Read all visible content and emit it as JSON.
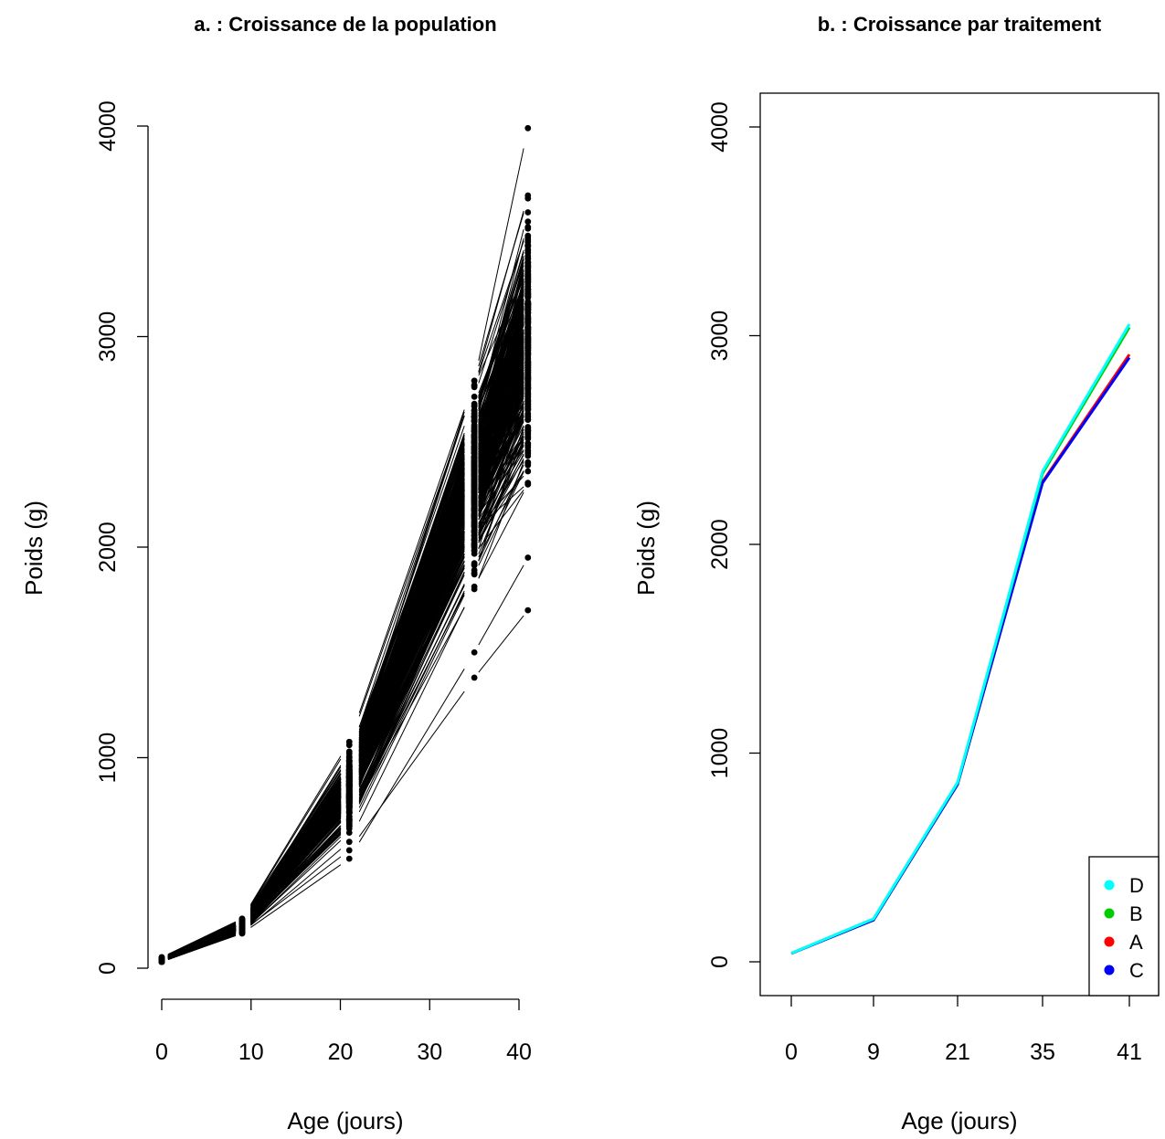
{
  "chart_data": [
    {
      "type": "line",
      "title": "a. : Croissance de la population",
      "xlabel": "Age (jours)",
      "ylabel": "Poids (g)",
      "xlim": [
        0,
        41
      ],
      "ylim": [
        0,
        4000
      ],
      "x_ticks": [
        "0",
        "10",
        "20",
        "30",
        "40"
      ],
      "y_ticks": [
        "0",
        "1000",
        "2000",
        "3000",
        "4000"
      ],
      "x": [
        0,
        9,
        21,
        35,
        41
      ],
      "description_of_series": "spaghetti plot of individual growth curves",
      "point_ranges": [
        {
          "x": 0,
          "min": 30,
          "max": 55
        },
        {
          "x": 9,
          "min": 150,
          "max": 240
        },
        {
          "x": 21,
          "min": 510,
          "max": 1080
        },
        {
          "x": 35,
          "min": 1380,
          "max": 2790
        },
        {
          "x": 41,
          "min": 1700,
          "max": 3990
        }
      ],
      "mean_curve": [
        40,
        200,
        850,
        2320,
        2970
      ],
      "grid": false
    },
    {
      "type": "line",
      "title": "b. : Croissance par traitement",
      "xlabel": "Age (jours)",
      "ylabel": "Poids (g)",
      "categories": [
        "0",
        "9",
        "21",
        "35",
        "41"
      ],
      "y_ticks": [
        "0",
        "1000",
        "2000",
        "3000",
        "4000"
      ],
      "ylim": [
        -150,
        4150
      ],
      "series": [
        {
          "name": "A",
          "color": "#ff0000",
          "values": [
            40,
            205,
            855,
            2300,
            2910
          ]
        },
        {
          "name": "C",
          "color": "#0000ff",
          "values": [
            40,
            200,
            850,
            2295,
            2895
          ]
        },
        {
          "name": "B",
          "color": "#00cd00",
          "values": [
            41,
            205,
            858,
            2340,
            3040
          ]
        },
        {
          "name": "D",
          "color": "#00ffff",
          "values": [
            41,
            206,
            860,
            2350,
            3055
          ]
        }
      ],
      "legend": {
        "position": "bottom-right",
        "entries": [
          {
            "label": "D",
            "color": "#00ffff"
          },
          {
            "label": "B",
            "color": "#00cd00"
          },
          {
            "label": "A",
            "color": "#ff0000"
          },
          {
            "label": "C",
            "color": "#0000ff"
          }
        ]
      },
      "grid": false
    }
  ]
}
